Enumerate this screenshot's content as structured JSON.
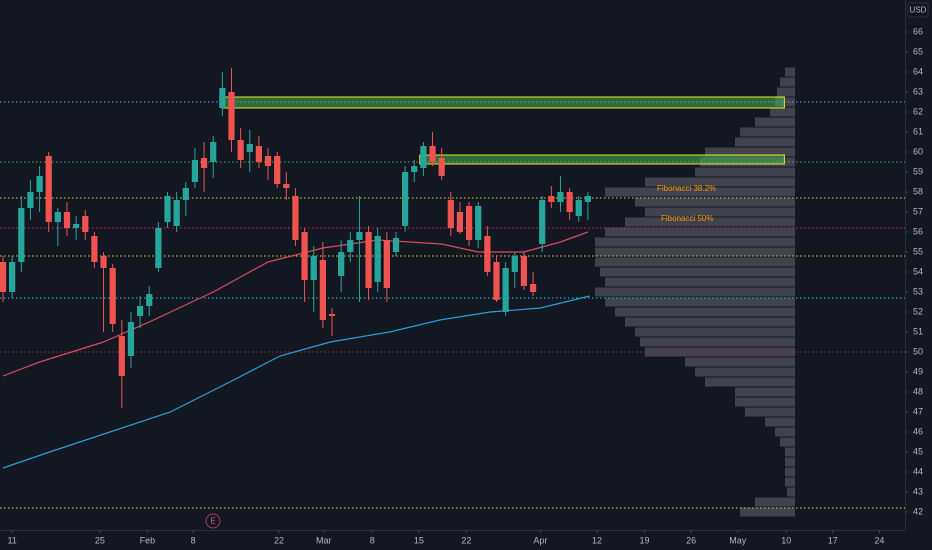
{
  "chart_data": {
    "type": "candlestick",
    "currency": "USD",
    "up_color": "#26a69a",
    "down_color": "#ef5350",
    "open": [
      54.5,
      53.0,
      54.5,
      57.2,
      58.0,
      59.8,
      56.5,
      57.0,
      56.2,
      56.8,
      55.8,
      54.8,
      54.2,
      50.8,
      49.8,
      51.8,
      52.3,
      54.2,
      56.5,
      56.3,
      57.6,
      58.5,
      59.7,
      59.5,
      62.2,
      63.0,
      60.6,
      60.0,
      60.3,
      59.8,
      59.8,
      58.4,
      57.8,
      56.0,
      53.6,
      54.6,
      51.9,
      53.8,
      55.0,
      55.6,
      56.0,
      53.5,
      55.6,
      55.0,
      56.3,
      59.0,
      59.2,
      60.3,
      59.7,
      57.6,
      57.0,
      57.3,
      55.6,
      55.8,
      54.5,
      52.0,
      54.0,
      54.8,
      53.4,
      55.4,
      57.8,
      57.5,
      58.0,
      56.8,
      57.5
    ],
    "high": [
      54.8,
      54.8,
      57.8,
      58.6,
      59.3,
      60.0,
      57.2,
      57.5,
      56.8,
      57.1,
      56.0,
      55.0,
      54.4,
      51.6,
      52.0,
      52.8,
      53.3,
      56.5,
      58.0,
      58.0,
      58.5,
      60.2,
      60.5,
      60.8,
      64.0,
      64.2,
      61.2,
      61.1,
      60.8,
      60.2,
      60.0,
      59.0,
      58.2,
      56.2,
      55.3,
      55.5,
      52.2,
      55.6,
      56.0,
      57.8,
      56.3,
      56.2,
      56.0,
      56.0,
      59.3,
      59.6,
      60.5,
      61.0,
      60.2,
      58.0,
      57.5,
      57.5,
      57.5,
      56.3,
      54.8,
      54.5,
      55.0,
      55.0,
      54.0,
      57.8,
      58.3,
      58.8,
      58.2,
      57.8,
      58.0
    ],
    "low": [
      52.5,
      52.7,
      54.0,
      56.6,
      57.0,
      56.0,
      55.3,
      55.8,
      55.6,
      55.6,
      54.2,
      51.0,
      51.0,
      47.2,
      49.2,
      51.2,
      51.8,
      54.0,
      56.2,
      56.0,
      56.8,
      58.2,
      58.0,
      58.7,
      61.8,
      60.0,
      59.2,
      59.0,
      59.2,
      58.6,
      58.2,
      57.6,
      55.3,
      52.5,
      52.0,
      51.2,
      50.8,
      53.0,
      54.5,
      52.5,
      52.6,
      53.0,
      52.5,
      54.8,
      56.0,
      58.5,
      58.8,
      59.3,
      58.6,
      55.8,
      55.9,
      55.3,
      55.2,
      53.8,
      52.5,
      51.8,
      53.2,
      53.1,
      52.8,
      55.0,
      57.2,
      57.0,
      56.6,
      56.5,
      56.6
    ],
    "close": [
      53.0,
      54.5,
      57.2,
      58.0,
      58.8,
      56.5,
      57.0,
      56.2,
      56.4,
      56.0,
      54.5,
      54.2,
      51.4,
      48.8,
      51.5,
      52.3,
      52.9,
      56.2,
      57.8,
      57.6,
      58.2,
      59.6,
      59.2,
      60.5,
      63.2,
      60.6,
      59.6,
      60.4,
      59.5,
      59.3,
      58.4,
      58.2,
      55.6,
      53.6,
      54.8,
      51.6,
      51.8,
      55.0,
      55.6,
      56.0,
      53.2,
      55.8,
      53.2,
      55.7,
      59.0,
      59.3,
      60.3,
      59.5,
      58.8,
      56.2,
      56.0,
      55.6,
      57.3,
      54.0,
      52.6,
      54.2,
      54.8,
      53.3,
      53.0,
      57.6,
      57.5,
      58.0,
      57.0,
      57.6,
      57.8
    ],
    "xlim": [
      -0.33,
      98.7
    ],
    "xticks": [
      {
        "value": 1,
        "label": "11"
      },
      {
        "value": 10.6,
        "label": "25"
      },
      {
        "value": 15.8,
        "label": "Feb"
      },
      {
        "value": 20.8,
        "label": "8"
      },
      {
        "value": 30.2,
        "label": "22"
      },
      {
        "value": 35.1,
        "label": "Mar"
      },
      {
        "value": 40.4,
        "label": "8"
      },
      {
        "value": 45.5,
        "label": "15"
      },
      {
        "value": 50.7,
        "label": "22"
      },
      {
        "value": 58.8,
        "label": "Apr"
      },
      {
        "value": 65,
        "label": "12"
      },
      {
        "value": 70.2,
        "label": "19"
      },
      {
        "value": 75.3,
        "label": "26"
      },
      {
        "value": 80.4,
        "label": "May"
      },
      {
        "value": 85.7,
        "label": "10"
      },
      {
        "value": 90.8,
        "label": "17"
      },
      {
        "value": 95.9,
        "label": "24"
      }
    ],
    "ylim": [
      41.1,
      67.6
    ],
    "yticks": [
      42,
      43,
      44,
      45,
      46,
      47,
      48,
      49,
      50,
      51,
      52,
      53,
      54,
      55,
      56,
      57,
      58,
      59,
      60,
      61,
      62,
      63,
      64,
      65,
      66
    ],
    "lines": [
      {
        "color": "#d84a5c",
        "x": [
          0,
          4,
          11,
          16,
          23,
          29,
          35,
          41,
          48,
          52,
          57,
          61,
          64
        ],
        "values": [
          48.8,
          49.5,
          50.5,
          51.5,
          53.0,
          54.5,
          55.2,
          55.6,
          55.4,
          55.0,
          55.0,
          55.5,
          56.0
        ]
      },
      {
        "color": "#2a9fd6",
        "x": [
          0,
          5.1,
          11.7,
          18.3,
          24.8,
          30.3,
          35.8,
          42.3,
          47.8,
          53.3,
          58.8,
          64.2
        ],
        "values": [
          44.2,
          45.0,
          46.0,
          47.0,
          48.5,
          49.8,
          50.5,
          51.0,
          51.6,
          52.0,
          52.2,
          52.8
        ]
      }
    ],
    "price_lines": [
      {
        "value": 62.5,
        "color": "#5b9cf6"
      },
      {
        "value": 59.5,
        "color": "#4caf50"
      },
      {
        "value": 57.7,
        "color": "#d9d92b"
      },
      {
        "value": 56.2,
        "color": "#e91e63"
      },
      {
        "value": 54.8,
        "color": "#d9d92b"
      },
      {
        "value": 52.7,
        "color": "#26c6da"
      },
      {
        "value": 50.0,
        "color": "#b22833"
      },
      {
        "value": 42.2,
        "color": "#d9d92b"
      }
    ],
    "zones": [
      {
        "x": [
          24,
          85.5
        ],
        "y": [
          62.2,
          62.75
        ]
      },
      {
        "x": [
          45.6,
          85.5
        ],
        "y": [
          59.4,
          59.85
        ]
      }
    ],
    "volume_profile": {
      "levels": [
        64,
        63.5,
        63,
        62.5,
        62,
        61.5,
        61,
        60.5,
        60,
        59.5,
        59,
        58.5,
        58,
        57.5,
        57,
        56.5,
        56,
        55.5,
        55,
        54.5,
        54,
        53.5,
        53,
        52.5,
        52,
        51.5,
        51,
        50.5,
        50,
        49.5,
        49,
        48.5,
        48,
        47.5,
        47,
        46.5,
        46,
        45.5,
        45,
        44.5,
        44,
        43.5,
        43,
        42.5,
        42
      ],
      "values": [
        10,
        15,
        18,
        20,
        25,
        40,
        55,
        60,
        90,
        95,
        100,
        150,
        190,
        160,
        150,
        170,
        190,
        200,
        200,
        200,
        195,
        190,
        200,
        190,
        180,
        170,
        160,
        155,
        150,
        110,
        100,
        90,
        60,
        60,
        50,
        30,
        20,
        15,
        10,
        10,
        10,
        10,
        8,
        40,
        55
      ]
    },
    "annotations": [
      "Fibonacci 38.2%",
      "Fibonacci 50%"
    ],
    "earnings_marker": "E"
  }
}
